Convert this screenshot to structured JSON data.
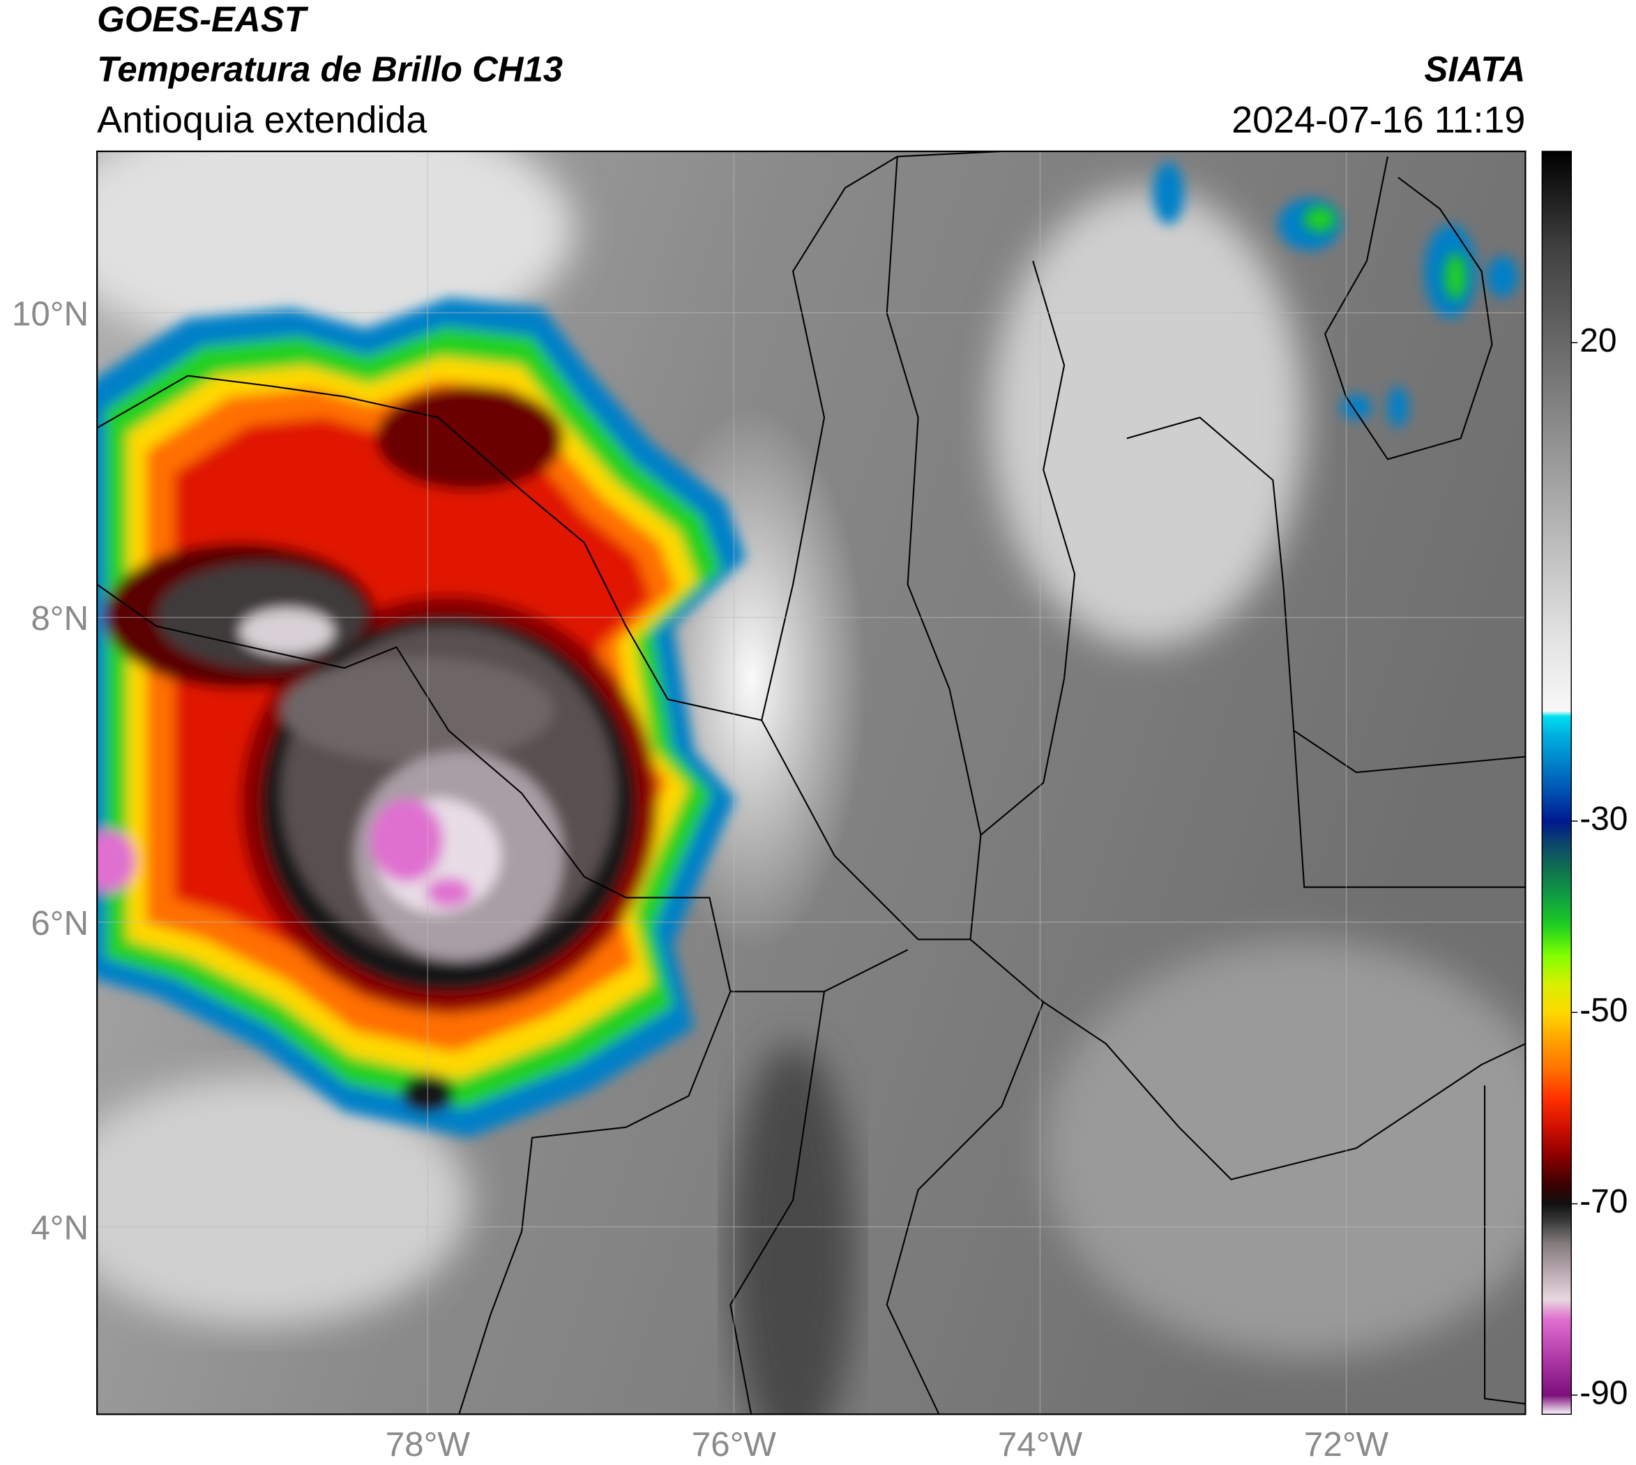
{
  "header": {
    "source": "GOES-EAST",
    "product": "Temperatura de Brillo CH13",
    "region": "Antioquia extendida",
    "org": "SIATA",
    "datetime": "2024-07-16 11:19"
  },
  "chart_data": {
    "type": "map",
    "xlim": [
      -80.16,
      -70.83
    ],
    "ylim": [
      2.77,
      11.06
    ],
    "xticks": [
      {
        "value": -78,
        "label": "78°W"
      },
      {
        "value": -76,
        "label": "76°W"
      },
      {
        "value": -74,
        "label": "74°W"
      },
      {
        "value": -72,
        "label": "72°W"
      }
    ],
    "yticks": [
      {
        "value": 10,
        "label": "10°N"
      },
      {
        "value": 8,
        "label": "8°N"
      },
      {
        "value": 6,
        "label": "6°N"
      },
      {
        "value": 4,
        "label": "4°N"
      }
    ],
    "grid": true,
    "colorbar": {
      "lim": [
        -92,
        40
      ],
      "ticks": [
        20,
        -30,
        -50,
        -70,
        -90
      ],
      "stops": [
        {
          "value": -92,
          "color": "#ffffff"
        },
        {
          "value": -90,
          "color": "#7b0f7b"
        },
        {
          "value": -86,
          "color": "#b03aa8"
        },
        {
          "value": -82,
          "color": "#e070d0"
        },
        {
          "value": -80,
          "color": "#e8d8e0"
        },
        {
          "value": -77,
          "color": "#b8a8b0"
        },
        {
          "value": -74,
          "color": "#807878"
        },
        {
          "value": -72,
          "color": "#404040"
        },
        {
          "value": -70,
          "color": "#101010"
        },
        {
          "value": -68,
          "color": "#3a0000"
        },
        {
          "value": -65,
          "color": "#8b0000"
        },
        {
          "value": -62,
          "color": "#d01000"
        },
        {
          "value": -59,
          "color": "#ff3000"
        },
        {
          "value": -56,
          "color": "#ff7000"
        },
        {
          "value": -53,
          "color": "#ffa000"
        },
        {
          "value": -50,
          "color": "#ffd800"
        },
        {
          "value": -47,
          "color": "#d8f000"
        },
        {
          "value": -44,
          "color": "#80ff00"
        },
        {
          "value": -41,
          "color": "#20d020"
        },
        {
          "value": -38,
          "color": "#10a040"
        },
        {
          "value": -35,
          "color": "#107050"
        },
        {
          "value": -32,
          "color": "#0a4070"
        },
        {
          "value": -30,
          "color": "#001890"
        },
        {
          "value": -27,
          "color": "#0050b0"
        },
        {
          "value": -24,
          "color": "#0080c8"
        },
        {
          "value": -21,
          "color": "#00b0e0"
        },
        {
          "value": -19,
          "color": "#00e0f0"
        },
        {
          "value": -18.5,
          "color": "#f8f8f8"
        },
        {
          "value": -10,
          "color": "#e0e0e0"
        },
        {
          "value": 0,
          "color": "#b8b8b8"
        },
        {
          "value": 10,
          "color": "#909090"
        },
        {
          "value": 20,
          "color": "#686868"
        },
        {
          "value": 30,
          "color": "#404040"
        },
        {
          "value": 40,
          "color": "#000000"
        }
      ]
    }
  }
}
